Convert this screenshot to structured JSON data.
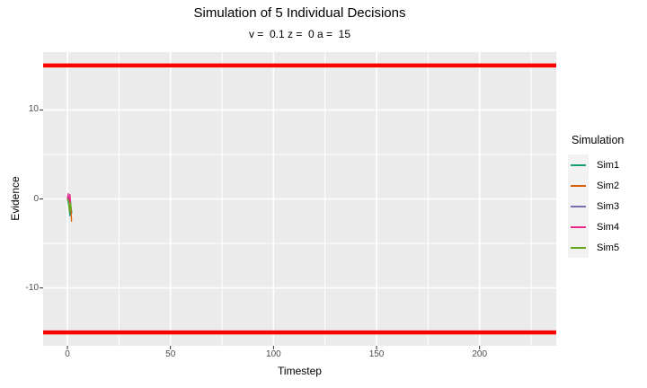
{
  "chart_data": {
    "type": "line",
    "title": "Simulation of 5 Individual Decisions",
    "subtitle": "v =  0.1 z =  0 a =  15",
    "xlabel": "Timestep",
    "ylabel": "Evidence",
    "xlim": [
      -11.8,
      237.2
    ],
    "ylim": [
      -16.5,
      16.5
    ],
    "x_ticks": [
      0,
      50,
      100,
      150,
      200
    ],
    "x_minor_ticks": [
      25,
      75,
      125,
      175,
      225
    ],
    "y_ticks": [
      -10,
      0,
      10
    ],
    "y_minor_ticks": [
      -15,
      -5,
      5,
      15
    ],
    "grid": true,
    "panel_bg_color": "#EBEBEB",
    "grid_color": "#FFFFFF",
    "tick_label_color": "#4D4D4D",
    "boundaries": {
      "upper": 15,
      "lower": -15,
      "color": "#FF0000"
    },
    "legend": {
      "title": "Simulation",
      "position": "right",
      "key_bg_color": "#F2F2F2"
    },
    "series": [
      {
        "name": "Sim1",
        "color": "#1B9E77",
        "points": [
          [
            0,
            0
          ],
          [
            0.6,
            -0.7
          ],
          [
            1.2,
            -1.9
          ],
          [
            1.8,
            -1.0
          ],
          [
            2.1,
            -1.6
          ]
        ]
      },
      {
        "name": "Sim2",
        "color": "#D95F02",
        "points": [
          [
            0,
            0
          ],
          [
            0.7,
            -0.3
          ],
          [
            1.2,
            -1.1
          ],
          [
            1.6,
            -0.6
          ],
          [
            2.0,
            -2.5
          ]
        ]
      },
      {
        "name": "Sim3",
        "color": "#7570B3",
        "points": [
          [
            0,
            0
          ],
          [
            0.4,
            0.5
          ],
          [
            0.9,
            -0.4
          ],
          [
            1.3,
            0.1
          ],
          [
            1.6,
            -0.5
          ]
        ]
      },
      {
        "name": "Sim4",
        "color": "#E7298A",
        "points": [
          [
            0,
            0
          ],
          [
            0.3,
            0.6
          ],
          [
            0.8,
            -0.6
          ],
          [
            1.2,
            0.5
          ],
          [
            1.5,
            -0.4
          ]
        ]
      },
      {
        "name": "Sim5",
        "color": "#66A61E",
        "points": [
          [
            0,
            0
          ],
          [
            0.5,
            -0.2
          ],
          [
            1.0,
            -1.4
          ],
          [
            1.5,
            -0.4
          ],
          [
            1.9,
            -1.2
          ]
        ]
      }
    ]
  }
}
